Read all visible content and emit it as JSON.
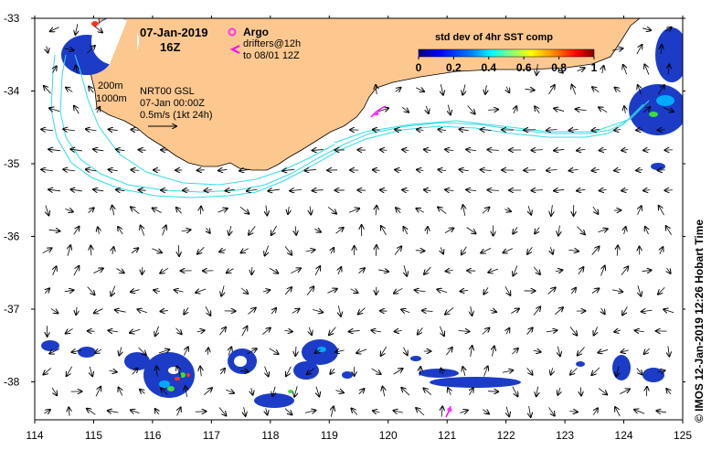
{
  "map": {
    "date": "07-Jan-2019",
    "hour": "16Z",
    "legend": {
      "argo_label": "Argo",
      "drifters_line1": "drifters@12h",
      "drifters_line2": "to 08/01 12Z",
      "argo_color": "#ff33ff",
      "drifter_color": "#ff00ff"
    },
    "contours": {
      "label_200": "200m",
      "label_1000": "1000m",
      "color": "#33dde8"
    },
    "current_info": {
      "line1": "NRT00 GSL",
      "line2": "07-Jan 00:00Z",
      "line3": "0.5m/s (1kt 24h)"
    },
    "colorbar": {
      "title": "std dev of 4hr SST comp",
      "ticks": [
        "0",
        "0.2",
        "0.4",
        "0.6",
        "0.8",
        "1"
      ],
      "colors": [
        "#00007f",
        "#0000ff",
        "#007fff",
        "#00ffff",
        "#7fff7f",
        "#ffff00",
        "#ff7f00",
        "#ff0000",
        "#7f0000"
      ]
    },
    "land_color": "#fcc88f",
    "x_ticks": [
      "114",
      "115",
      "116",
      "117",
      "118",
      "119",
      "120",
      "121",
      "122",
      "123",
      "124",
      "125"
    ],
    "y_ticks": [
      "-33",
      "-34",
      "-35",
      "-36",
      "-37",
      "-38"
    ],
    "credit": "© IMOS 12-Jan-2019 12:26 Hobart Time"
  }
}
